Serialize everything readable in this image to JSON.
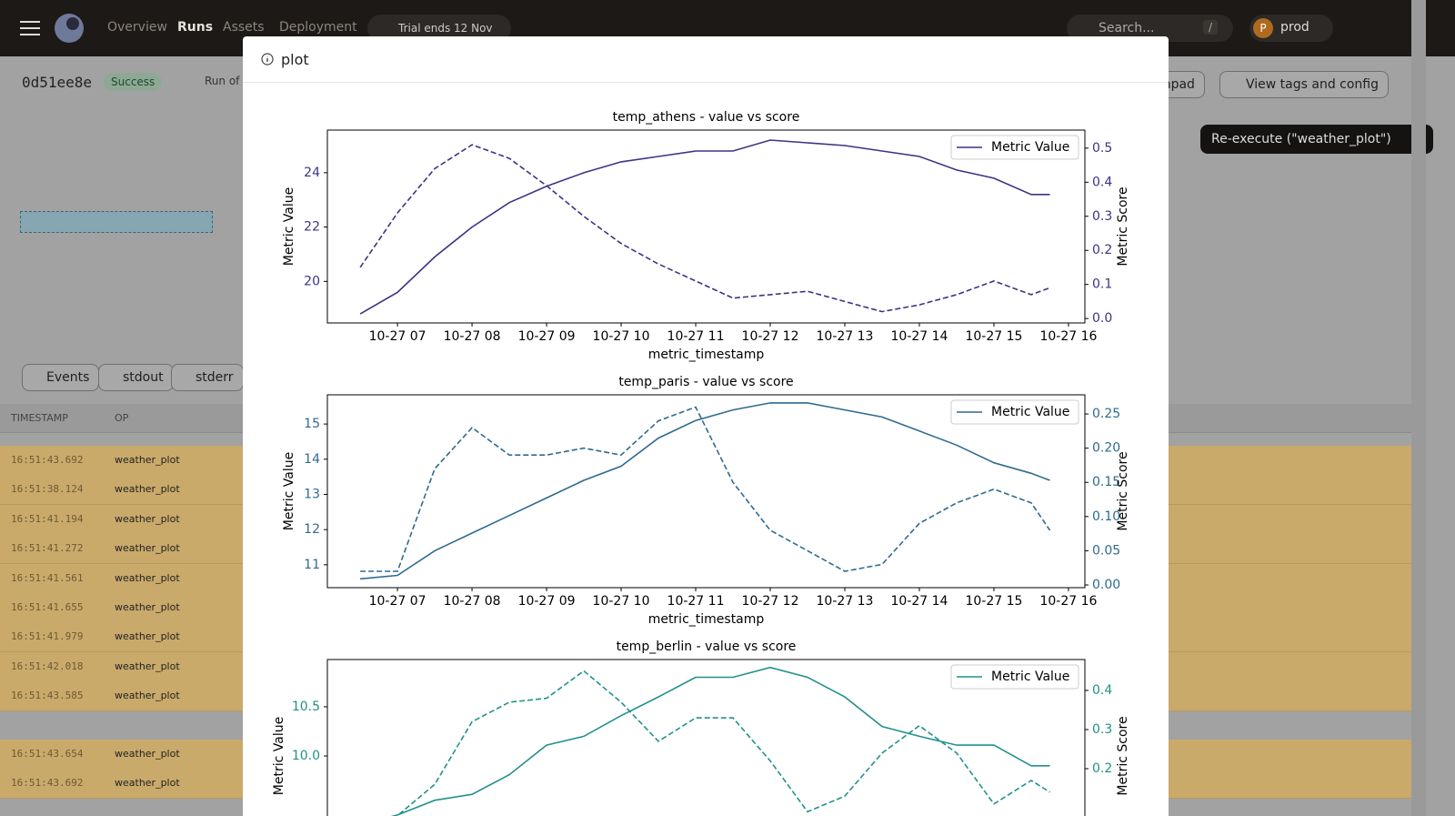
{
  "nav": {
    "links": [
      "Overview",
      "Runs",
      "Assets",
      "Deployment"
    ],
    "trial": "Trial ends 12 Nov",
    "search": "Search...",
    "shortcut": "/",
    "avatar": "P",
    "deployment": "prod"
  },
  "run": {
    "id": "0d51ee8e",
    "status": "Success",
    "run_of": "Run of",
    "buttons": [
      "chpad",
      "View tags and config",
      "Re-execute (\"weather_plot\")"
    ]
  },
  "tabs": [
    "Events",
    "stdout",
    "stderr"
  ],
  "table": {
    "headers": [
      "TIMESTAMP",
      "OP"
    ],
    "rows": [
      [
        "16:51:43.692",
        "weather_plot"
      ],
      [
        "16:51:38.124",
        "weather_plot"
      ],
      [
        "16:51:41.194",
        "weather_plot"
      ],
      [
        "16:51:41.272",
        "weather_plot"
      ],
      [
        "16:51:41.561",
        "weather_plot"
      ],
      [
        "16:51:41.655",
        "weather_plot"
      ],
      [
        "16:51:41.979",
        "weather_plot"
      ],
      [
        "16:51:42.018",
        "weather_plot"
      ],
      [
        "16:51:43.585",
        "weather_plot"
      ],
      [
        "16:51:43.654",
        "weather_plot"
      ],
      [
        "16:51:43.692",
        "weather_plot"
      ]
    ]
  },
  "modal": {
    "title": "plot"
  },
  "chart_data": [
    {
      "type": "line",
      "title": "temp_athens - value vs score",
      "xlabel": "metric_timestamp",
      "ylabel": "Metric Value",
      "y2label": "Metric Score",
      "legend": "upper right",
      "x": [
        6.5,
        7,
        7.5,
        8,
        8.5,
        9,
        9.5,
        10,
        10.5,
        11,
        11.5,
        12,
        12.5,
        13,
        13.5,
        14,
        14.5,
        15,
        15.5,
        15.75
      ],
      "xlim": [
        6.06,
        16.22
      ],
      "xticks": [
        {
          "value": 7,
          "label": "10-27 07"
        },
        {
          "value": 8,
          "label": "10-27 08"
        },
        {
          "value": 9,
          "label": "10-27 09"
        },
        {
          "value": 10,
          "label": "10-27 10"
        },
        {
          "value": 11,
          "label": "10-27 11"
        },
        {
          "value": 12,
          "label": "10-27 12"
        },
        {
          "value": 13,
          "label": "10-27 13"
        },
        {
          "value": 14,
          "label": "10-27 14"
        },
        {
          "value": 15,
          "label": "10-27 15"
        },
        {
          "value": 16,
          "label": "10-27 16"
        }
      ],
      "ylim": [
        18.47,
        25.57
      ],
      "yticks": [
        20,
        22,
        24
      ],
      "y2lim": [
        -0.013,
        0.553
      ],
      "y2ticks": [
        {
          "value": 0,
          "label": "0.0"
        },
        0.1,
        0.2,
        0.3,
        0.4,
        0.5
      ],
      "series": [
        {
          "name": "Metric Value",
          "color": "#3b3486",
          "values": [
            18.8,
            19.6,
            20.9,
            22.0,
            22.9,
            23.5,
            24.0,
            24.4,
            24.6,
            24.8,
            24.8,
            25.2,
            25.1,
            25.0,
            24.8,
            24.6,
            24.1,
            23.8,
            23.2,
            23.2
          ]
        },
        {
          "color": "#3b3486",
          "axis": "y2",
          "linestyle": "dashed",
          "values": [
            0.15,
            0.31,
            0.44,
            0.51,
            0.47,
            0.39,
            0.3,
            0.22,
            0.16,
            0.11,
            0.06,
            0.07,
            0.08,
            0.05,
            0.02,
            0.04,
            0.07,
            0.11,
            0.07,
            0.09
          ]
        }
      ]
    },
    {
      "type": "line",
      "title": "temp_paris - value vs score",
      "xlabel": "metric_timestamp",
      "ylabel": "Metric Value",
      "y2label": "Metric Score",
      "legend": "upper right",
      "x": [
        6.5,
        7,
        7.5,
        8,
        8.5,
        9,
        9.5,
        10,
        10.5,
        11,
        11.5,
        12,
        12.5,
        13,
        13.5,
        14,
        14.5,
        15,
        15.5,
        15.75
      ],
      "xlim": [
        6.06,
        16.22
      ],
      "xticks": [
        {
          "value": 7,
          "label": "10-27 07"
        },
        {
          "value": 8,
          "label": "10-27 08"
        },
        {
          "value": 9,
          "label": "10-27 09"
        },
        {
          "value": 10,
          "label": "10-27 10"
        },
        {
          "value": 11,
          "label": "10-27 11"
        },
        {
          "value": 12,
          "label": "10-27 12"
        },
        {
          "value": 13,
          "label": "10-27 13"
        },
        {
          "value": 14,
          "label": "10-27 14"
        },
        {
          "value": 15,
          "label": "10-27 15"
        },
        {
          "value": 16,
          "label": "10-27 16"
        }
      ],
      "ylim": [
        10.35,
        15.83
      ],
      "yticks": [
        11,
        12,
        13,
        14,
        15
      ],
      "y2lim": [
        -0.004,
        0.278
      ],
      "y2ticks": [
        {
          "value": 0,
          "label": "0.00"
        },
        0.05,
        {
          "value": 0.1,
          "label": "0.10"
        },
        0.15,
        {
          "value": 0.2,
          "label": "0.20"
        },
        0.25
      ],
      "series": [
        {
          "name": "Metric Value",
          "color": "#2f6a8f",
          "values": [
            10.6,
            10.7,
            11.4,
            11.9,
            12.4,
            12.9,
            13.4,
            13.8,
            14.6,
            15.1,
            15.4,
            15.6,
            15.6,
            15.4,
            15.2,
            14.8,
            14.4,
            13.9,
            13.6,
            13.4
          ]
        },
        {
          "color": "#2f6a8f",
          "axis": "y2",
          "linestyle": "dashed",
          "values": [
            0.02,
            0.02,
            0.17,
            0.23,
            0.19,
            0.19,
            0.2,
            0.19,
            0.24,
            0.26,
            0.15,
            0.08,
            0.05,
            0.02,
            0.03,
            0.09,
            0.12,
            0.14,
            0.12,
            0.08
          ]
        }
      ]
    },
    {
      "type": "line",
      "title": "temp_berlin - value vs score",
      "ylabel": "Metric Value",
      "y2label": "Metric Score",
      "legend": "upper right",
      "x": [
        6.5,
        7,
        7.5,
        8,
        8.5,
        9,
        9.5,
        10,
        10.5,
        11,
        11.5,
        12,
        12.5,
        13,
        13.5,
        14,
        14.5,
        15,
        15.5,
        15.75
      ],
      "xlim": [
        6.06,
        16.22
      ],
      "ylim": [
        9.02,
        10.98
      ],
      "yticks": [
        {
          "value": 10,
          "label": "10.0"
        },
        10.5
      ],
      "y2lim": [
        -0.014,
        0.479
      ],
      "y2ticks": [
        0.2,
        0.3,
        0.4
      ],
      "series": [
        {
          "name": "Metric Value",
          "color": "#21918c",
          "values": [
            9.3,
            9.4,
            9.55,
            9.61,
            9.81,
            10.11,
            10.2,
            10.41,
            10.6,
            10.8,
            10.8,
            10.9,
            10.8,
            10.6,
            10.3,
            10.2,
            10.11,
            10.11,
            9.9,
            9.9
          ]
        },
        {
          "color": "#21918c",
          "axis": "y2",
          "linestyle": "dashed",
          "values": [
            0.05,
            0.08,
            0.16,
            0.32,
            0.37,
            0.38,
            0.45,
            0.37,
            0.27,
            0.33,
            0.33,
            0.22,
            0.09,
            0.13,
            0.24,
            0.31,
            0.24,
            0.11,
            0.17,
            0.14
          ]
        }
      ]
    }
  ]
}
